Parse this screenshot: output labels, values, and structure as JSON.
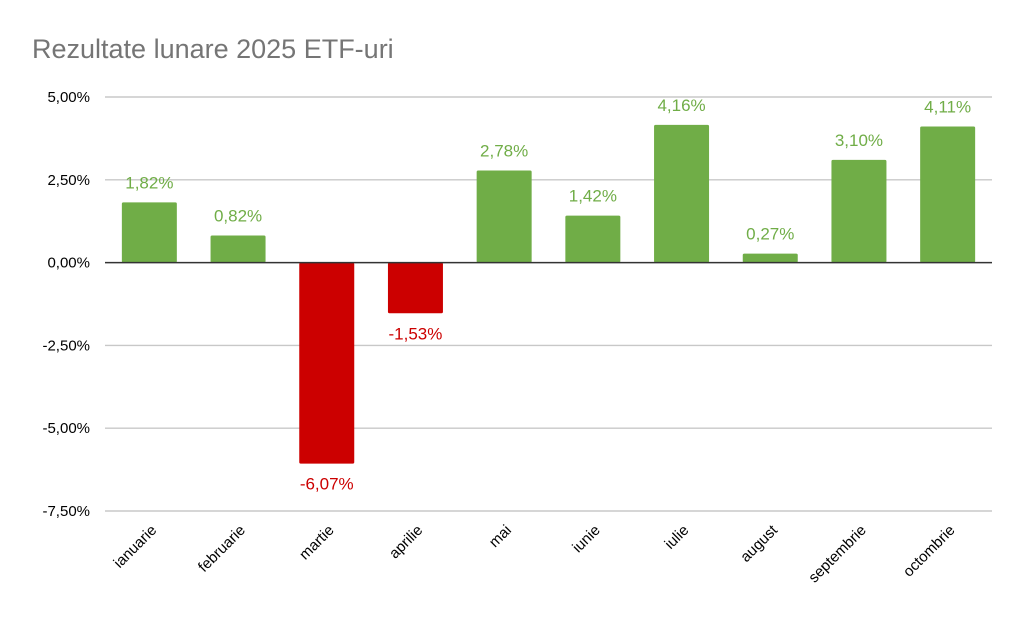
{
  "chart_data": {
    "type": "bar",
    "title": "Rezultate lunare 2025 ETF-uri",
    "xlabel": "",
    "ylabel": "",
    "categories": [
      "ianuarie",
      "februarie",
      "martie",
      "aprilie",
      "mai",
      "iunie",
      "iulie",
      "august",
      "septembrie",
      "octombrie"
    ],
    "values": [
      1.82,
      0.82,
      -6.07,
      -1.53,
      2.78,
      1.42,
      4.16,
      0.27,
      3.1,
      4.11
    ],
    "data_labels": [
      "1,82%",
      "0,82%",
      "-6,07%",
      "-1,53%",
      "2,78%",
      "1,42%",
      "4,16%",
      "0,27%",
      "3,10%",
      "4,11%"
    ],
    "ylim": [
      -7.5,
      5.0
    ],
    "yticks": [
      5.0,
      2.5,
      0.0,
      -2.5,
      -5.0,
      -7.5
    ],
    "ytick_labels": [
      "5,00%",
      "2,50%",
      "0,00%",
      "-2,50%",
      "-5,00%",
      "-7,50%"
    ],
    "grid": true,
    "legend": "none",
    "colors": {
      "positive": "#70ad47",
      "negative": "#cc0000",
      "title": "#757575"
    }
  }
}
